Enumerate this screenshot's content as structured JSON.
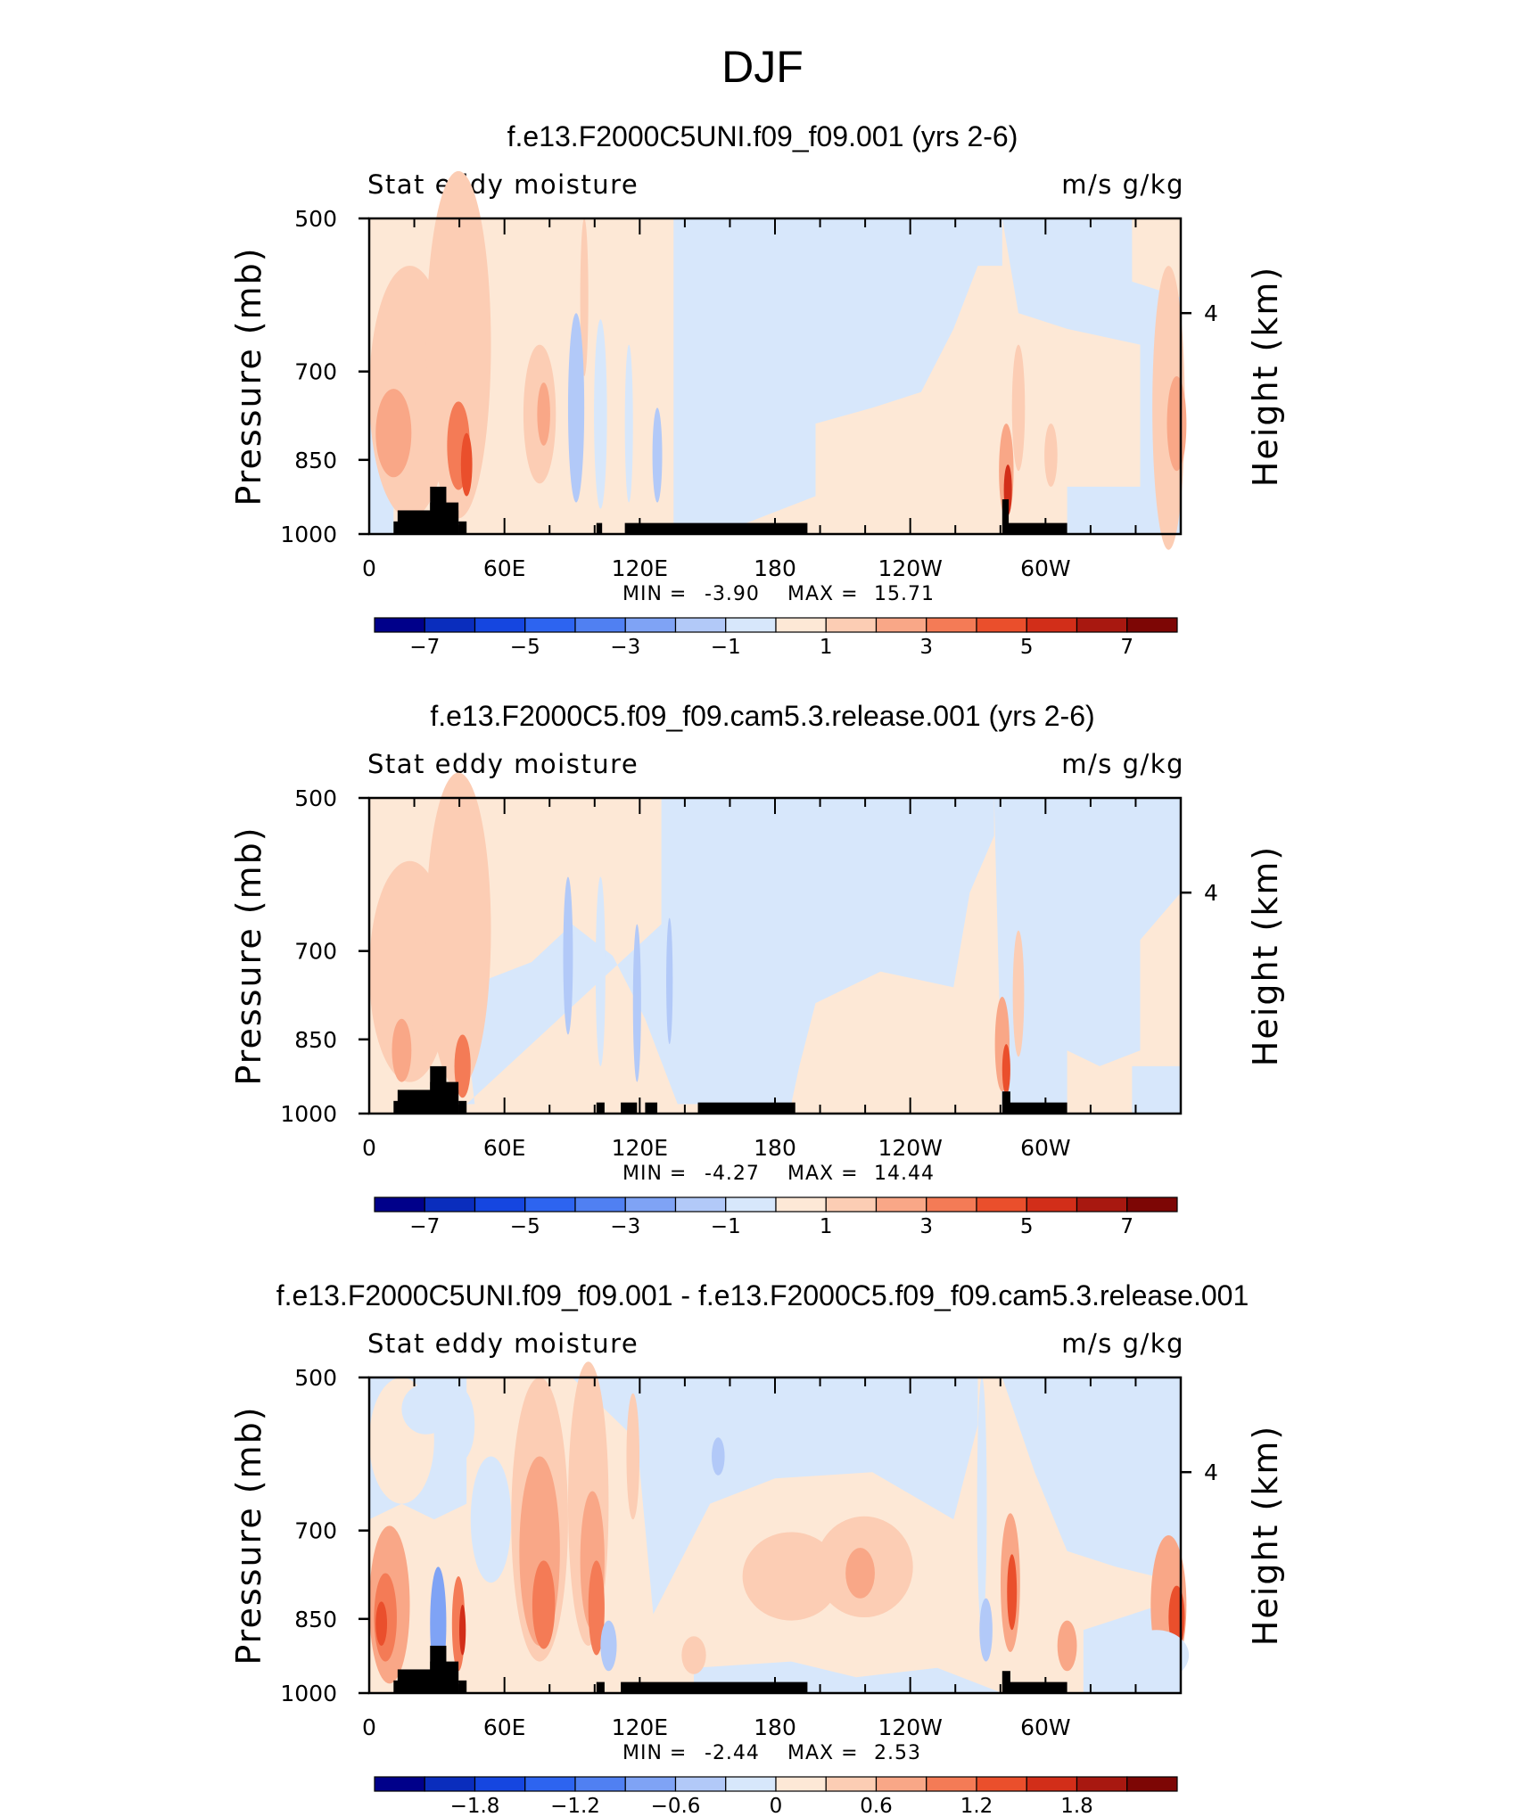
{
  "figure": {
    "title": "DJF"
  },
  "chart_data": [
    {
      "type": "heatmap",
      "title": "f.e13.F2000C5UNI.f09_f09.001 (yrs 2-6)",
      "left_label": "Stat eddy moisture",
      "right_label": "m/s g/kg",
      "ylabel": "Pressure (mb)",
      "ylabel_right": "Height (km)",
      "x_ticks": [
        "0",
        "60E",
        "120E",
        "180",
        "120W",
        "60W"
      ],
      "y_ticks": [
        "500",
        "700",
        "850",
        "1000"
      ],
      "y_right_ticks": [
        "4"
      ],
      "ylim": [
        1000,
        500
      ],
      "stats": {
        "min_label": "MIN =",
        "min": "-3.90",
        "max_label": "MAX =",
        "max": "15.71"
      },
      "colorbar": {
        "labels": [
          "-7",
          "-5",
          "-3",
          "-1",
          "1",
          "3",
          "5",
          "7"
        ]
      }
    },
    {
      "type": "heatmap",
      "title": "f.e13.F2000C5.f09_f09.cam5.3.release.001 (yrs 2-6)",
      "left_label": "Stat eddy moisture",
      "right_label": "m/s g/kg",
      "ylabel": "Pressure (mb)",
      "ylabel_right": "Height (km)",
      "x_ticks": [
        "0",
        "60E",
        "120E",
        "180",
        "120W",
        "60W"
      ],
      "y_ticks": [
        "500",
        "700",
        "850",
        "1000"
      ],
      "y_right_ticks": [
        "4"
      ],
      "ylim": [
        1000,
        500
      ],
      "stats": {
        "min_label": "MIN =",
        "min": "-4.27",
        "max_label": "MAX =",
        "max": "14.44"
      },
      "colorbar": {
        "labels": [
          "-7",
          "-5",
          "-3",
          "-1",
          "1",
          "3",
          "5",
          "7"
        ]
      }
    },
    {
      "type": "heatmap",
      "title": "f.e13.F2000C5UNI.f09_f09.001 - f.e13.F2000C5.f09_f09.cam5.3.release.001",
      "left_label": "Stat eddy moisture",
      "right_label": "m/s g/kg",
      "ylabel": "Pressure (mb)",
      "ylabel_right": "Height (km)",
      "x_ticks": [
        "0",
        "60E",
        "120E",
        "180",
        "120W",
        "60W"
      ],
      "y_ticks": [
        "500",
        "700",
        "850",
        "1000"
      ],
      "y_right_ticks": [
        "4"
      ],
      "ylim": [
        1000,
        500
      ],
      "stats": {
        "min_label": "MIN =",
        "min": "-2.44",
        "max_label": "MAX =",
        "max": "2.53"
      },
      "colorbar": {
        "labels": [
          "-1.8",
          "-1.2",
          "-0.6",
          "0",
          "0.6",
          "1.2",
          "1.8"
        ]
      }
    }
  ],
  "colors": {
    "palette": [
      "#00008a",
      "#0a2dbd",
      "#1546e0",
      "#2d64f0",
      "#5080f2",
      "#7fa3f5",
      "#b2c9f8",
      "#d7e7fb",
      "#fde8d6",
      "#fccdb4",
      "#f9a787",
      "#f47b56",
      "#ea4f2c",
      "#d22e19",
      "#a81810",
      "#7d0605"
    ],
    "background_pos": "#fde8d6",
    "background_neg": "#d7e7fb",
    "topography": "#000000"
  }
}
